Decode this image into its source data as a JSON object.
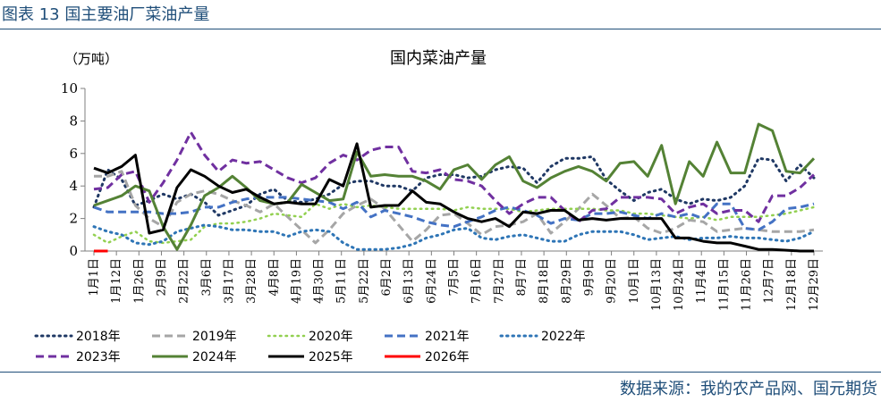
{
  "figure_title": "图表 13 国主要油厂菜油产量",
  "source": "数据来源：我的农产品网、国元期货",
  "chart_data": {
    "type": "line",
    "title": "国内菜油产量",
    "ylabel": "（万吨）",
    "xlabel": "",
    "ylim": [
      0,
      10
    ],
    "yticks": [
      0,
      2,
      4,
      6,
      8,
      10
    ],
    "legend_position": "bottom",
    "grid": false,
    "x_ticks": [
      "1月1日",
      "1月12日",
      "1月26日",
      "2月9日",
      "2月22日",
      "3月6日",
      "3月17日",
      "3月28日",
      "4月8日",
      "4月19日",
      "4月30日",
      "5月11日",
      "5月22日",
      "6月2日",
      "6月13日",
      "6月24日",
      "7月5日",
      "7月16日",
      "7月27日",
      "8月7日",
      "8月18日",
      "8月29日",
      "9月9日",
      "9月20日",
      "10月1日",
      "10月13日",
      "10月24日",
      "11月4日",
      "11月15日",
      "11月26日",
      "12月7日",
      "12月18日",
      "12月29日"
    ],
    "n_points": 53,
    "series": [
      {
        "name": "2018年",
        "color": "#1f3864",
        "dash": "dot",
        "width": 3,
        "values": [
          2.7,
          5.0,
          4.4,
          2.8,
          3.1,
          3.5,
          3.2,
          3.5,
          3.0,
          2.2,
          2.5,
          2.8,
          3.5,
          3.8,
          3.1,
          3.0,
          3.2,
          3.5,
          4.1,
          4.3,
          4.3,
          4.0,
          4.0,
          3.7,
          4.5,
          4.7,
          4.7,
          4.5,
          4.6,
          5.0,
          5.2,
          5.1,
          4.2,
          5.2,
          5.7,
          5.7,
          5.8,
          4.4,
          3.7,
          3.1,
          3.6,
          3.8,
          3.2,
          2.9,
          3.2,
          3.1,
          3.3,
          4.0,
          5.7,
          5.6,
          4.3,
          5.3,
          4.5
        ]
      },
      {
        "name": "2019年",
        "color": "#a6a6a6",
        "dash": "dash",
        "width": 3,
        "values": [
          4.6,
          4.6,
          4.9,
          2.8,
          2.0,
          1.5,
          3.0,
          3.5,
          3.7,
          3.5,
          3.1,
          2.8,
          2.4,
          2.9,
          2.1,
          1.3,
          0.5,
          1.3,
          2.3,
          2.8,
          3.2,
          2.6,
          1.6,
          0.6,
          1.3,
          2.2,
          2.3,
          1.7,
          1.0,
          1.5,
          1.6,
          1.8,
          2.3,
          1.1,
          1.8,
          2.6,
          3.5,
          2.8,
          2.0,
          2.1,
          1.4,
          1.1,
          1.4,
          1.9,
          1.8,
          1.2,
          1.3,
          1.4,
          1.3,
          1.2,
          1.2,
          1.2,
          1.3
        ]
      },
      {
        "name": "2020年",
        "color": "#92d050",
        "dash": "dot",
        "width": 2.5,
        "values": [
          1.0,
          0.5,
          0.9,
          1.2,
          0.6,
          0.5,
          0.6,
          0.7,
          1.5,
          1.7,
          1.7,
          1.8,
          2.0,
          2.3,
          2.2,
          2.1,
          2.9,
          2.6,
          2.9,
          2.7,
          2.8,
          2.7,
          2.6,
          2.6,
          2.6,
          2.6,
          2.5,
          2.7,
          2.6,
          2.6,
          2.6,
          2.4,
          2.5,
          2.6,
          2.6,
          2.6,
          2.6,
          2.5,
          2.5,
          2.3,
          2.3,
          2.2,
          2.1,
          2.0,
          2.1,
          1.9,
          2.1,
          2.1,
          2.1,
          2.2,
          2.3,
          2.5,
          2.7
        ]
      },
      {
        "name": "2021年",
        "color": "#4472c4",
        "dash": "dash",
        "width": 3,
        "values": [
          2.7,
          2.4,
          2.4,
          2.4,
          2.4,
          2.3,
          2.3,
          2.4,
          2.7,
          2.7,
          3.0,
          3.2,
          3.3,
          3.3,
          3.3,
          3.2,
          3.1,
          3.0,
          2.6,
          3.0,
          2.1,
          2.5,
          2.3,
          2.1,
          1.8,
          1.6,
          1.5,
          1.8,
          2.1,
          2.5,
          2.7,
          2.5,
          2.2,
          1.7,
          2.0,
          1.9,
          2.3,
          2.3,
          2.4,
          2.2,
          2.0,
          2.3,
          2.1,
          2.3,
          2.0,
          2.9,
          2.9,
          1.4,
          1.3,
          1.8,
          2.6,
          2.7,
          2.9
        ]
      },
      {
        "name": "2022年",
        "color": "#2e75b6",
        "dash": "dot",
        "width": 3,
        "values": [
          1.5,
          1.2,
          1.0,
          0.5,
          0.4,
          0.6,
          1.2,
          1.4,
          1.6,
          1.5,
          1.3,
          1.3,
          1.2,
          1.2,
          0.9,
          1.2,
          1.3,
          1.2,
          0.5,
          0.1,
          0.1,
          0.1,
          0.2,
          0.4,
          0.8,
          1.0,
          1.3,
          1.4,
          0.8,
          0.7,
          0.9,
          1.0,
          0.8,
          0.6,
          0.6,
          1.0,
          1.2,
          1.2,
          1.2,
          1.0,
          0.7,
          0.8,
          0.9,
          0.7,
          0.8,
          0.8,
          0.9,
          0.8,
          0.8,
          0.7,
          0.6,
          0.8,
          1.2
        ]
      },
      {
        "name": "2023年",
        "color": "#7030a0",
        "dash": "dash",
        "width": 3,
        "values": [
          3.8,
          3.9,
          4.7,
          4.9,
          3.0,
          4.2,
          5.6,
          7.3,
          5.9,
          4.9,
          5.6,
          5.4,
          5.5,
          5.0,
          4.5,
          4.2,
          4.5,
          5.4,
          5.9,
          5.6,
          6.2,
          6.4,
          6.4,
          4.9,
          4.8,
          5.0,
          4.4,
          4.3,
          4.0,
          3.1,
          2.3,
          2.9,
          3.3,
          3.3,
          2.5,
          1.8,
          2.5,
          2.6,
          3.3,
          3.3,
          3.3,
          3.2,
          2.3,
          2.7,
          2.9,
          2.3,
          2.5,
          2.5,
          1.8,
          3.4,
          3.4,
          3.9,
          4.7
        ]
      },
      {
        "name": "2024年",
        "color": "#548235",
        "dash": "solid",
        "width": 3,
        "values": [
          2.8,
          3.1,
          3.4,
          4.0,
          3.7,
          1.5,
          0.1,
          1.6,
          3.4,
          3.9,
          4.6,
          3.9,
          3.1,
          2.9,
          3.0,
          4.1,
          3.6,
          3.1,
          3.2,
          6.1,
          4.6,
          4.7,
          4.6,
          4.6,
          4.3,
          3.8,
          5.0,
          5.3,
          4.4,
          5.3,
          5.8,
          4.3,
          3.9,
          4.5,
          4.9,
          5.2,
          4.9,
          4.3,
          5.4,
          5.5,
          4.6,
          6.5,
          2.9,
          5.5,
          4.6,
          6.7,
          4.8,
          4.8,
          7.8,
          7.4,
          4.9,
          4.8,
          5.7
        ]
      },
      {
        "name": "2025年",
        "color": "#000000",
        "dash": "solid",
        "width": 3,
        "values": [
          5.1,
          4.8,
          5.2,
          5.9,
          1.1,
          1.3,
          3.9,
          5.0,
          4.6,
          4.0,
          3.6,
          3.8,
          3.3,
          2.9,
          3.0,
          2.9,
          2.9,
          4.4,
          4.0,
          6.6,
          2.7,
          2.8,
          2.8,
          3.7,
          3.0,
          2.9,
          2.4,
          2.0,
          1.8,
          2.0,
          1.5,
          2.4,
          2.3,
          2.5,
          2.5,
          1.9,
          2.0,
          1.9,
          2.0,
          2.0,
          2.0,
          2.0,
          0.8,
          0.8,
          0.6,
          0.5,
          0.5,
          0.3,
          0.1,
          0.1,
          0.05,
          0.0,
          0.0
        ]
      },
      {
        "name": "2026年",
        "color": "#ff0000",
        "dash": "solid",
        "width": 3,
        "values": [
          0.0,
          0.0
        ]
      }
    ]
  }
}
